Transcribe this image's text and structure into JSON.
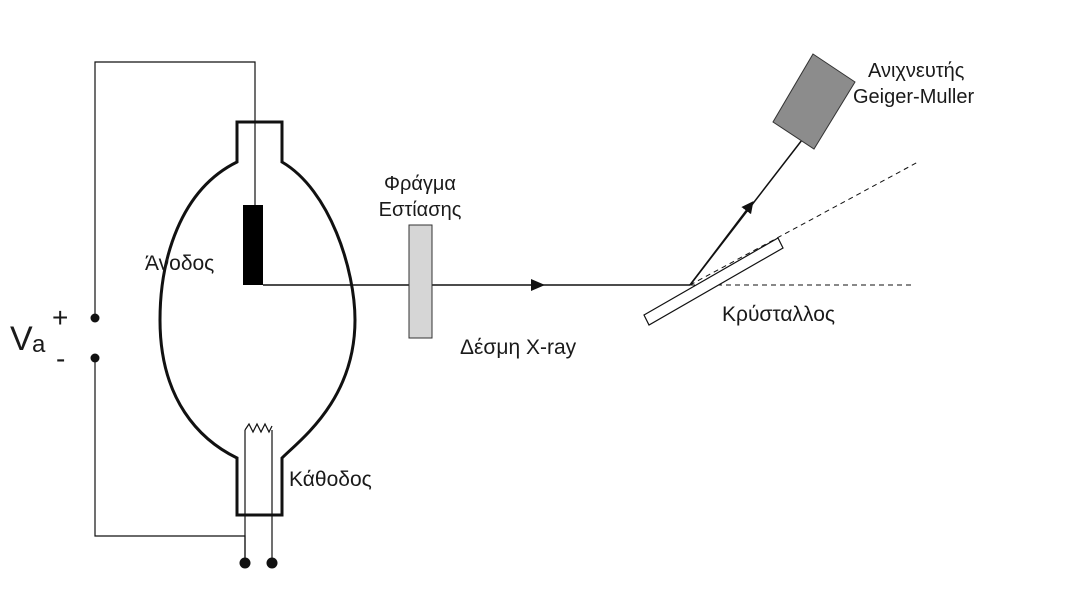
{
  "labels": {
    "anode": "Άνοδος",
    "cathode": "Κάθοδος",
    "aperture_line1": "Φράγμα",
    "aperture_line2": "Εστίασης",
    "beam": "Δέσμη X-ray",
    "crystal": "Κρύσταλλος",
    "detector_line1": "Ανιχνευτής",
    "detector_line2": "Geiger-Muller",
    "voltage_main": "V",
    "voltage_sub": "a",
    "plus_sign": "+",
    "minus_sign": "-"
  },
  "colors": {
    "line": "#111111",
    "anode_block": "#000000",
    "aperture_fill": "#d6d6d6",
    "detector_fill": "#8c8c8c",
    "crystal_fill": "#ffffff"
  }
}
